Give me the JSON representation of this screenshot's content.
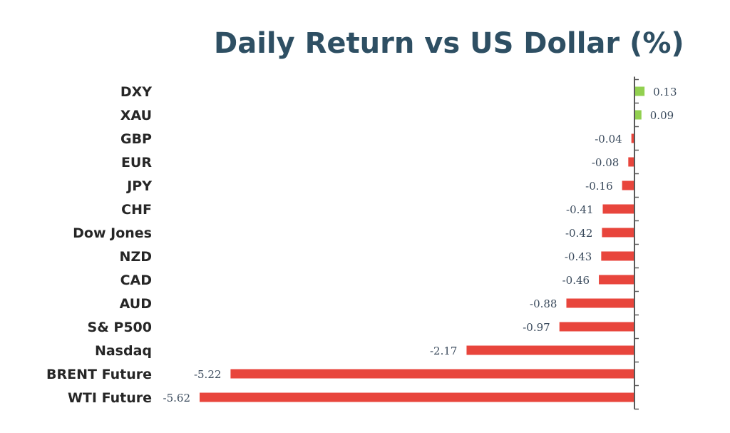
{
  "chart_data": {
    "type": "bar",
    "orientation": "horizontal",
    "title": "Daily Return vs US Dollar (%)",
    "categories": [
      "DXY",
      "XAU",
      "GBP",
      "EUR",
      "JPY",
      "CHF",
      "Dow Jones",
      "NZD",
      "CAD",
      "AUD",
      "S& P500",
      "Nasdaq",
      "BRENT Future",
      "WTI Future"
    ],
    "values": [
      0.13,
      0.09,
      -0.04,
      -0.08,
      -0.16,
      -0.41,
      -0.42,
      -0.43,
      -0.46,
      -0.88,
      -0.97,
      -2.17,
      -5.22,
      -5.62
    ],
    "value_labels": [
      "0.13",
      "0.09",
      "-0.04",
      "-0.08",
      "-0.16",
      "-0.41",
      "-0.42",
      "-0.43",
      "-0.46",
      "-0.88",
      "-0.97",
      "-2.17",
      "-5.22",
      "-5.62"
    ],
    "xlim": [
      -5.62,
      0.13
    ],
    "grid": false,
    "legend": false,
    "colors": {
      "positive": "#92d050",
      "negative": "#e8453c",
      "axis": "#595959",
      "title": "#2e4f63"
    }
  }
}
